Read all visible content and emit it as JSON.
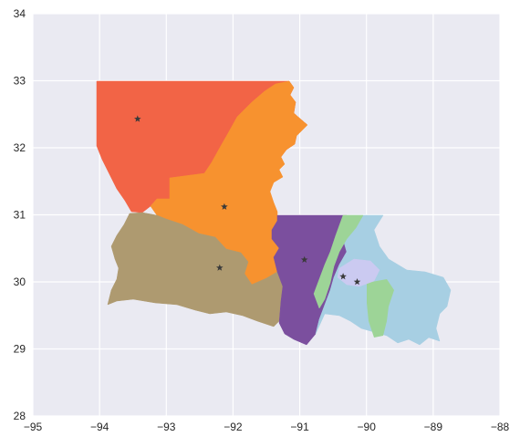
{
  "chart_data": {
    "type": "map",
    "title": "",
    "xlabel": "",
    "ylabel": "",
    "xlim": [
      -95,
      -88
    ],
    "ylim": [
      28,
      34
    ],
    "grid": true,
    "x_ticks": [
      "−95",
      "−94",
      "−93",
      "−92",
      "−91",
      "−90",
      "−89",
      "−88"
    ],
    "y_ticks": [
      "28",
      "29",
      "30",
      "31",
      "32",
      "33",
      "34"
    ],
    "background_color": "#eaeaf2",
    "grid_color": "#ffffff",
    "districts": [
      {
        "color": "#f26446"
      },
      {
        "color": "#f7922f"
      },
      {
        "color": "#ae9a70"
      },
      {
        "color": "#7b4f9e"
      },
      {
        "color": "#9dd497"
      },
      {
        "color": "#a7cfe3"
      },
      {
        "color": "#cbcaf1"
      }
    ],
    "centroids": [
      {
        "lon": -93.43,
        "lat": 32.43
      },
      {
        "lon": -92.13,
        "lat": 31.12
      },
      {
        "lon": -92.2,
        "lat": 30.21
      },
      {
        "lon": -90.93,
        "lat": 30.33
      },
      {
        "lon": -90.35,
        "lat": 30.08
      },
      {
        "lon": -90.14,
        "lat": 30.0
      }
    ]
  }
}
